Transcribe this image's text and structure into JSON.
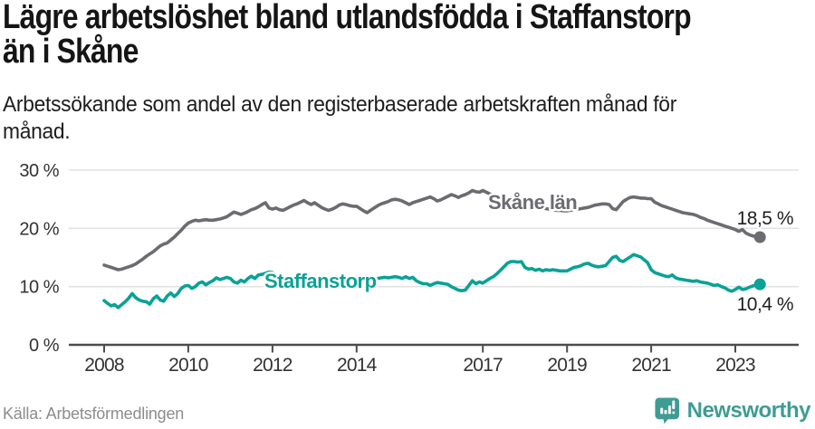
{
  "footer": {
    "source_label": "Källa: Arbetsförmedlingen",
    "brand": "Newsworthy"
  },
  "colors": {
    "skane_line": "#6b6b70",
    "staffanstorp_line": "#0aa296",
    "axis": "#4c4c4c",
    "axis_text": "#333333",
    "gridline": "#e2e2e2",
    "brand_teal": "#3f9c94",
    "title_text": "#151515",
    "source_text": "#8c8c8c"
  },
  "chart_data": {
    "type": "line",
    "title": "Lägre arbetslöshet bland utlandsfödda i Staffanstorp\nän i Skåne",
    "subtitle": "Arbetssökande som andel av den registerbaserade arbetskraften månad för\nmånad.",
    "source": "Källa: Arbetsförmedlingen",
    "x_start_year": 2008,
    "frequency": "monthly",
    "x_tick_years": [
      2008,
      2010,
      2012,
      2014,
      2017,
      2019,
      2021,
      2023
    ],
    "y_ticks": [
      {
        "value": 0,
        "label": "0 %"
      },
      {
        "value": 10,
        "label": "10 %"
      },
      {
        "value": 20,
        "label": "20 %"
      },
      {
        "value": 30,
        "label": "30 %"
      }
    ],
    "ylim": [
      0,
      30
    ],
    "grid": "horizontal",
    "legend_position": "inline-labels",
    "series": [
      {
        "name": "Skåne län",
        "color": "#6b6b70",
        "end_label": "18,5 %",
        "last_value": 18.5,
        "values": [
          13.7,
          13.5,
          13.3,
          13.1,
          12.9,
          13.0,
          13.2,
          13.4,
          13.6,
          13.9,
          14.3,
          14.7,
          15.2,
          15.6,
          16.0,
          16.5,
          17.0,
          17.3,
          17.5,
          18.0,
          18.5,
          19.1,
          19.7,
          20.4,
          20.9,
          21.2,
          21.4,
          21.3,
          21.4,
          21.5,
          21.4,
          21.4,
          21.5,
          21.6,
          21.8,
          22.0,
          22.4,
          22.8,
          22.6,
          22.4,
          22.6,
          22.9,
          23.2,
          23.4,
          23.7,
          24.1,
          24.4,
          23.5,
          23.3,
          23.5,
          23.2,
          23.1,
          23.4,
          23.7,
          24.0,
          24.2,
          24.5,
          24.8,
          24.4,
          24.1,
          24.4,
          24.0,
          23.6,
          23.3,
          23.1,
          23.3,
          23.6,
          24.0,
          24.2,
          24.1,
          23.9,
          23.8,
          23.8,
          23.4,
          23.0,
          22.7,
          23.1,
          23.5,
          23.9,
          24.2,
          24.4,
          24.6,
          24.9,
          25.0,
          24.9,
          24.7,
          24.4,
          24.1,
          24.4,
          24.6,
          24.8,
          25.0,
          25.2,
          25.4,
          25.1,
          24.7,
          24.9,
          25.2,
          25.5,
          25.8,
          25.6,
          25.3,
          25.6,
          25.8,
          26.1,
          26.5,
          26.3,
          26.2,
          26.5,
          26.2,
          25.9,
          25.7,
          25.5,
          25.4,
          25.2,
          25.1,
          25.0,
          24.9,
          24.7,
          24.5,
          24.3,
          24.1,
          23.9,
          23.7,
          23.6,
          23.5,
          23.4,
          23.3,
          23.2,
          23.1,
          23.1,
          23.0,
          23.0,
          23.1,
          23.2,
          23.3,
          23.4,
          23.5,
          23.6,
          23.8,
          24.0,
          24.1,
          24.2,
          24.2,
          24.1,
          23.4,
          23.2,
          23.9,
          24.6,
          25.0,
          25.3,
          25.4,
          25.3,
          25.2,
          25.2,
          25.1,
          25.1,
          24.5,
          24.2,
          23.9,
          23.7,
          23.5,
          23.3,
          23.1,
          22.9,
          22.7,
          22.6,
          22.5,
          22.4,
          22.2,
          21.9,
          21.7,
          21.4,
          21.2,
          21.0,
          20.8,
          20.6,
          20.4,
          20.2,
          20.0,
          19.8,
          19.5,
          19.8,
          19.2,
          18.9,
          18.7,
          18.6,
          18.5
        ]
      },
      {
        "name": "Staffanstorp",
        "color": "#0aa296",
        "end_label": "10,4 %",
        "last_value": 10.4,
        "values": [
          7.6,
          7.1,
          6.7,
          6.9,
          6.4,
          6.9,
          7.4,
          8.0,
          8.8,
          8.1,
          7.7,
          7.5,
          7.4,
          7.0,
          7.9,
          8.4,
          7.7,
          7.5,
          8.4,
          8.9,
          8.3,
          8.8,
          9.7,
          10.1,
          10.2,
          9.7,
          10.0,
          10.6,
          10.8,
          10.3,
          10.7,
          11.0,
          11.5,
          11.2,
          11.4,
          11.6,
          11.4,
          10.8,
          10.6,
          11.1,
          10.8,
          11.4,
          11.8,
          11.4,
          12.0,
          12.1,
          12.3,
          12.5,
          12.4,
          12.0,
          11.6,
          11.4,
          11.1,
          10.8,
          10.5,
          10.3,
          10.6,
          10.8,
          10.9,
          11.0,
          11.0,
          10.9,
          10.8,
          10.9,
          11.0,
          11.1,
          11.2,
          11.4,
          11.5,
          11.4,
          11.5,
          11.6,
          11.6,
          11.5,
          11.4,
          11.5,
          11.4,
          11.3,
          11.4,
          11.5,
          11.6,
          11.5,
          11.6,
          11.7,
          11.6,
          11.4,
          11.7,
          11.4,
          11.6,
          11.0,
          10.7,
          10.5,
          10.5,
          10.2,
          10.5,
          10.7,
          10.6,
          10.5,
          10.4,
          10.0,
          9.7,
          9.4,
          9.3,
          9.4,
          10.2,
          11.0,
          10.5,
          10.8,
          10.6,
          11.0,
          11.4,
          11.7,
          12.2,
          12.8,
          13.4,
          14.0,
          14.3,
          14.3,
          14.2,
          14.3,
          13.3,
          13.0,
          13.1,
          12.8,
          13.0,
          12.7,
          12.9,
          12.8,
          12.9,
          12.8,
          12.7,
          12.7,
          12.7,
          13.0,
          13.3,
          13.4,
          13.6,
          13.9,
          14.0,
          13.7,
          13.5,
          13.4,
          13.5,
          13.6,
          14.3,
          15.0,
          15.2,
          14.5,
          14.3,
          14.7,
          15.1,
          15.5,
          15.3,
          15.1,
          14.6,
          14.1,
          12.9,
          12.4,
          12.2,
          12.0,
          11.8,
          11.7,
          12.0,
          11.5,
          11.3,
          11.2,
          11.1,
          11.0,
          10.9,
          11.0,
          10.8,
          10.7,
          10.6,
          10.4,
          10.2,
          10.3,
          10.0,
          9.8,
          9.4,
          9.2,
          9.5,
          9.9,
          9.5,
          9.6,
          9.9,
          10.1,
          10.3,
          10.4
        ]
      }
    ]
  }
}
